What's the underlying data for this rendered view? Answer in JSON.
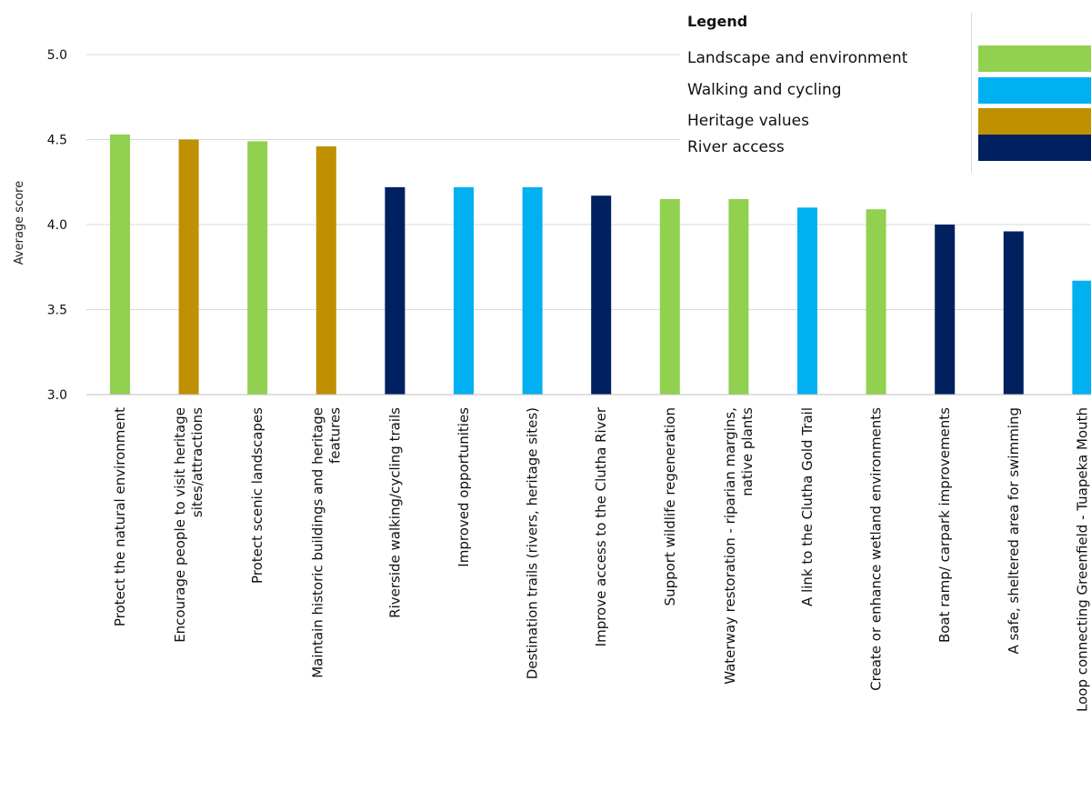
{
  "chart_data": {
    "type": "bar",
    "title": "",
    "xlabel": "",
    "ylabel": "Average score",
    "ylim": [
      3.0,
      5.0
    ],
    "yticks": [
      "3.0",
      "3.5",
      "4.0",
      "4.5",
      "5.0"
    ],
    "grid": true,
    "legend_position": "top-right",
    "categories": [
      "Protect the natural environment",
      "Encourage people to visit heritage sites/attractions",
      "Protect scenic landscapes",
      "Maintain historic buildings and heritage features",
      "Riverside walking/cycling trails",
      "Improved opportunities",
      "Destination trails (rivers, heritage sites)",
      "Improve access to the Clutha River",
      "Support wildlife regeneration",
      "Waterway restoration - riparian margins, native plants",
      "A link to the Clutha Gold Trail",
      "Create or enhance wetland environments",
      "Boat ramp/ carpark improvements",
      "A safe, sheltered area for swimming",
      "Loop connecting Greenfield - Tuapeka Mouth"
    ],
    "category_lines": [
      [
        "Protect the natural environment"
      ],
      [
        "Encourage people to visit heritage",
        "sites/attractions"
      ],
      [
        "Protect scenic landscapes"
      ],
      [
        "Maintain historic buildings and heritage",
        "features"
      ],
      [
        "Riverside walking/cycling trails"
      ],
      [
        "Improved opportunities"
      ],
      [
        "Destination trails (rivers, heritage sites)"
      ],
      [
        "Improve access to the Clutha River"
      ],
      [
        "Support wildlife regeneration"
      ],
      [
        "Waterway restoration - riparian margins,",
        "native plants"
      ],
      [
        "A link to the Clutha Gold Trail"
      ],
      [
        "Create or enhance wetland environments"
      ],
      [
        "Boat ramp/ carpark improvements"
      ],
      [
        "A safe, sheltered area for swimming"
      ],
      [
        "Loop connecting Greenfield - Tuapeka Mouth"
      ]
    ],
    "values": [
      4.53,
      4.5,
      4.49,
      4.46,
      4.22,
      4.22,
      4.22,
      4.17,
      4.15,
      4.15,
      4.1,
      4.09,
      4.0,
      3.96,
      3.67
    ],
    "groups": [
      "Landscape and environment",
      "Heritage values",
      "Landscape and environment",
      "Heritage values",
      "River access",
      "Walking and cycling",
      "Walking and cycling",
      "River access",
      "Landscape and environment",
      "Landscape and environment",
      "Walking and cycling",
      "Landscape and environment",
      "River access",
      "River access",
      "Walking and cycling"
    ],
    "legend": {
      "title": "Legend",
      "items": [
        {
          "label": "Landscape and environment",
          "color": "#92D050"
        },
        {
          "label": "Walking and cycling",
          "color": "#00B0F0"
        },
        {
          "label": "Heritage values",
          "color": "#BF9000"
        },
        {
          "label": "River access",
          "color": "#002060"
        }
      ]
    }
  }
}
